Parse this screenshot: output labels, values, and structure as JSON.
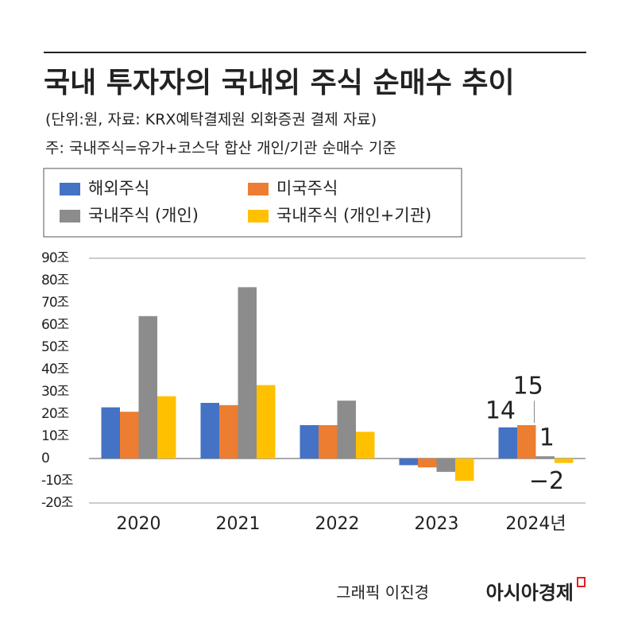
{
  "chart_data": {
    "type": "bar",
    "title": "국내 투자자의 국내외 주식 순매수 추이",
    "subtitle": "(단위:원, 자료: KRX예탁결제원 외화증권 결제 자료)",
    "note": "주: 국내주식=유가+코스닥 합산 개인/기관 순매수 기준",
    "categories": [
      "2020",
      "2021",
      "2022",
      "2023",
      "2024년"
    ],
    "series": [
      {
        "name": "해외주식",
        "color": "#4472c4",
        "label_color": "#4a6fa8",
        "values": [
          23,
          25,
          15,
          -3,
          14
        ],
        "value_labels": [
          null,
          null,
          null,
          null,
          "14"
        ]
      },
      {
        "name": "미국주식",
        "color": "#ed7d31",
        "label_color": "#ed7d31",
        "values": [
          21,
          24,
          15,
          -4,
          15
        ],
        "value_labels": [
          null,
          null,
          null,
          null,
          "15"
        ]
      },
      {
        "name": "국내주식 (개인)",
        "color": "#8c8c8c",
        "label_color": "#8c8c8c",
        "values": [
          64,
          77,
          26,
          -6,
          1
        ],
        "value_labels": [
          null,
          null,
          null,
          null,
          "1"
        ]
      },
      {
        "name": "국내주식 (개인+기관)",
        "color": "#ffc000",
        "label_color": "#c9a227",
        "values": [
          28,
          33,
          12,
          -10,
          -2
        ],
        "value_labels": [
          null,
          null,
          null,
          null,
          "−2"
        ]
      }
    ],
    "ylim": [
      -20,
      90
    ],
    "yticks": [
      {
        "value": -20,
        "label": "-20조"
      },
      {
        "value": -10,
        "label": "-10조"
      },
      0,
      {
        "value": 10,
        "label": "10조"
      },
      {
        "value": 20,
        "label": "20조"
      },
      {
        "value": 30,
        "label": "30조"
      },
      {
        "value": 40,
        "label": "40조"
      },
      {
        "value": 50,
        "label": "50조"
      },
      {
        "value": 60,
        "label": "60조"
      },
      {
        "value": 70,
        "label": "70조"
      },
      {
        "value": 80,
        "label": "80조"
      },
      {
        "value": 90,
        "label": "90조"
      }
    ],
    "grid_lines_at": [
      -20,
      0,
      90
    ],
    "credit": "그래픽 이진경",
    "brand": "아시아경제"
  }
}
